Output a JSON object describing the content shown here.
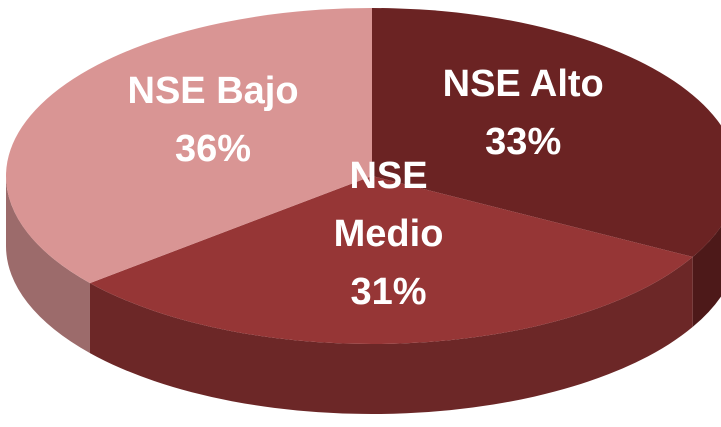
{
  "chart_data": {
    "type": "pie",
    "categories": [
      "NSE Alto",
      "NSE Medio",
      "NSE Bajo"
    ],
    "values": [
      33,
      31,
      36
    ],
    "value_labels": [
      "33%",
      "31%",
      "36%"
    ],
    "colors": [
      "#6b2323",
      "#963636",
      "#d99594"
    ]
  }
}
